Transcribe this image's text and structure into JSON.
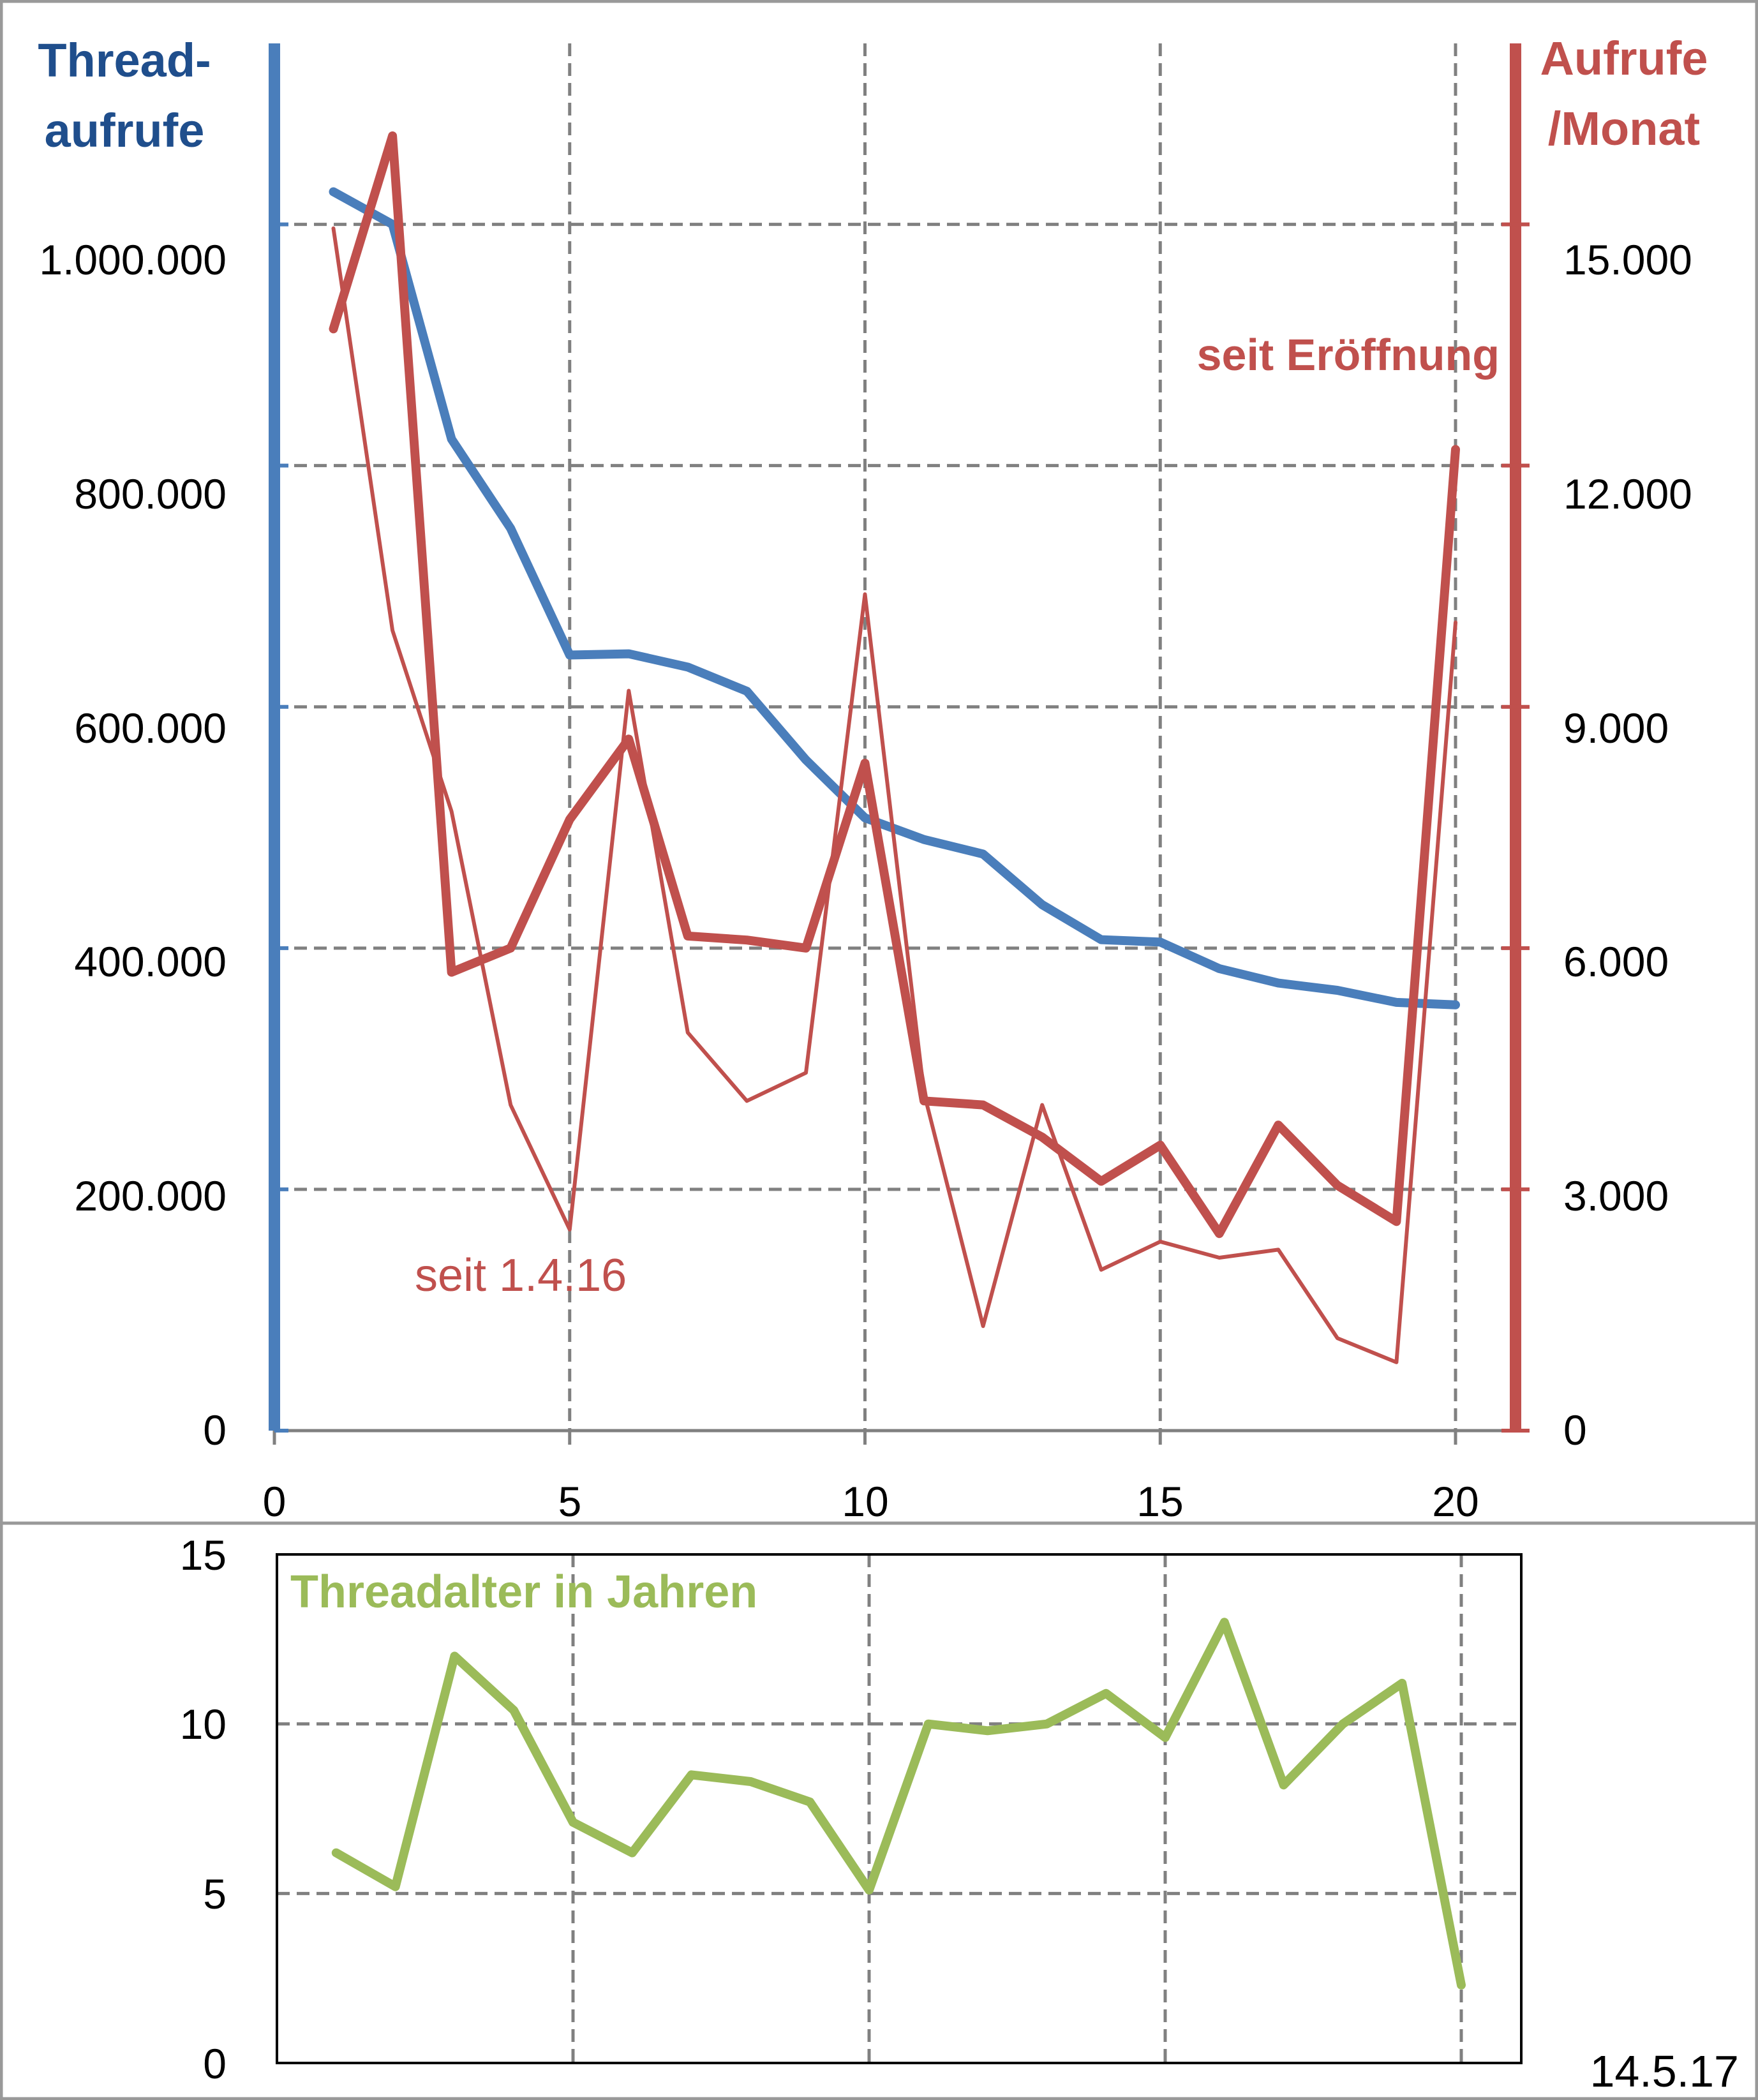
{
  "colors": {
    "views": "#4a7ebb",
    "per_month": "#c0504d",
    "age": "#9bbb59",
    "grid": "#808080",
    "frame": "#999999"
  },
  "chart_data": [
    {
      "type": "line",
      "x_ticks": [
        "0",
        "5",
        "10",
        "15",
        "20"
      ],
      "xlim": [
        0,
        21
      ],
      "left_axis": {
        "title_lines": [
          "Thread-",
          "aufrufe"
        ],
        "ticks": [
          "0",
          "200.000",
          "400.000",
          "600.000",
          "800.000",
          "1.000.000"
        ],
        "ylim": [
          0,
          1150000
        ]
      },
      "right_axis": {
        "title_lines": [
          "Aufrufe",
          "/Monat"
        ],
        "ticks": [
          "0",
          "3.000",
          "6.000",
          "9.000",
          "12.000",
          "15.000"
        ],
        "ylim": [
          0,
          17250
        ]
      },
      "grid": true,
      "series": [
        {
          "axis": "left",
          "color": "#4a7ebb",
          "width": "thick",
          "x": [
            1,
            2,
            3,
            4,
            5,
            6,
            7,
            8,
            9,
            10,
            11,
            12,
            13,
            14,
            15,
            16,
            17,
            18,
            19,
            20
          ],
          "y": [
            1027000,
            1000000,
            822000,
            748000,
            643000,
            644000,
            633000,
            613000,
            556000,
            508000,
            490000,
            478000,
            436000,
            407000,
            405000,
            383000,
            371000,
            365000,
            355000,
            353000
          ]
        },
        {
          "axis": "right",
          "label": "seit Eröffnung",
          "color": "#c0504d",
          "width": "thick",
          "x": [
            1,
            2,
            3,
            4,
            5,
            6,
            7,
            8,
            9,
            10,
            11,
            12,
            13,
            14,
            15,
            16,
            17,
            18,
            19,
            20
          ],
          "y": [
            13700,
            16100,
            5700,
            6000,
            7600,
            8600,
            6150,
            6100,
            6000,
            8300,
            4100,
            4050,
            3650,
            3100,
            3550,
            2450,
            3800,
            3050,
            2600,
            12200
          ]
        },
        {
          "axis": "right",
          "label": "seit 1.4.16",
          "color": "#c0504d",
          "width": "thin",
          "x": [
            1,
            2,
            3,
            4,
            5,
            6,
            7,
            8,
            9,
            10,
            11,
            12,
            13,
            14,
            15,
            16,
            17,
            18,
            19,
            20
          ],
          "y": [
            14950,
            9950,
            7700,
            4050,
            2500,
            9200,
            4950,
            4100,
            4450,
            10400,
            4200,
            1300,
            4050,
            2000,
            2350,
            2150,
            2250,
            1150,
            850,
            10050
          ]
        }
      ]
    },
    {
      "type": "line",
      "title": "Threadalter in Jahren",
      "y_ticks": [
        "0",
        "5",
        "10",
        "15"
      ],
      "ylim": [
        0,
        15
      ],
      "xlim": [
        0,
        21
      ],
      "grid": true,
      "annotation": "14.5.17",
      "series": [
        {
          "color": "#9bbb59",
          "x": [
            1,
            2,
            3,
            4,
            5,
            6,
            7,
            8,
            9,
            10,
            11,
            12,
            13,
            14,
            15,
            16,
            17,
            18,
            19,
            20
          ],
          "y": [
            6.2,
            5.2,
            12.0,
            10.4,
            7.1,
            6.2,
            8.5,
            8.3,
            7.7,
            5.1,
            10.0,
            9.8,
            10.0,
            10.9,
            9.6,
            13.0,
            8.2,
            10.0,
            11.2,
            2.3
          ]
        }
      ]
    }
  ]
}
